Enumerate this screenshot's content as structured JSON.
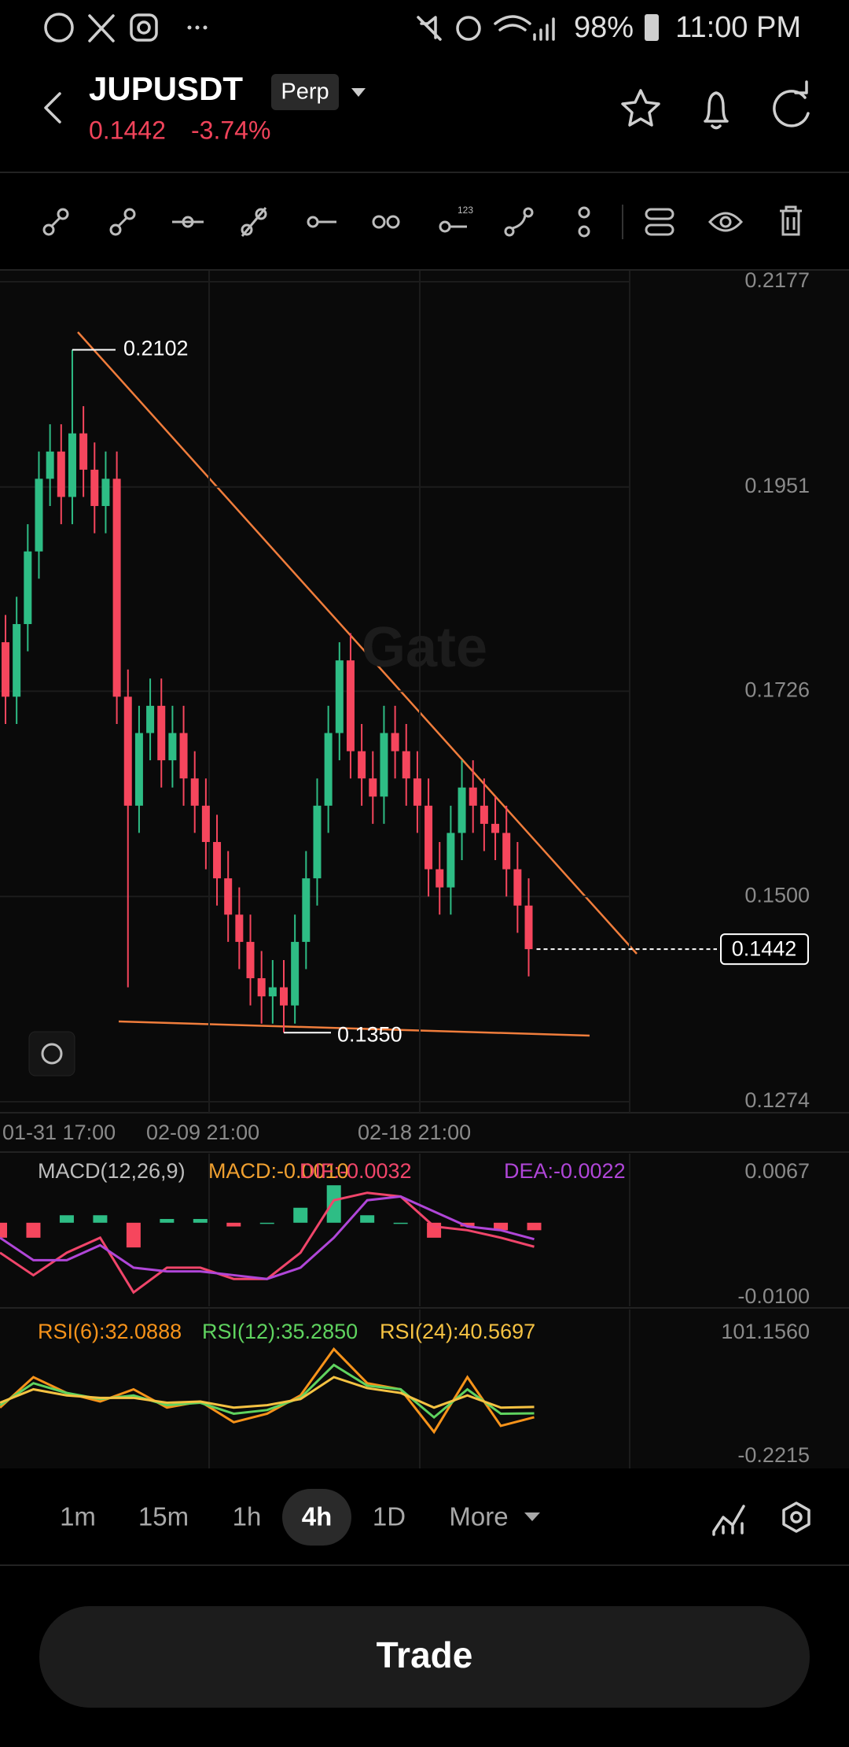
{
  "status_bar": {
    "battery": "98%",
    "time": "11:00 PM"
  },
  "header": {
    "symbol": "JUPUSDT",
    "contract": "Perp",
    "price": "0.1442",
    "change": "-3.74%"
  },
  "chart_data": [
    {
      "type": "candlestick",
      "watermark": "Gate",
      "up_color": "#2ebd85",
      "down_color": "#f6465d",
      "open": [
        0.178,
        0.172,
        0.18,
        0.188,
        0.196,
        0.199,
        0.194,
        0.201,
        0.197,
        0.193,
        0.196,
        0.172,
        0.16,
        0.168,
        0.171,
        0.165,
        0.168,
        0.163,
        0.16,
        0.156,
        0.152,
        0.148,
        0.145,
        0.141,
        0.139,
        0.14,
        0.138,
        0.145,
        0.152,
        0.16,
        0.168,
        0.176,
        0.166,
        0.163,
        0.161,
        0.168,
        0.166,
        0.163,
        0.16,
        0.153,
        0.151,
        0.157,
        0.162,
        0.16,
        0.158,
        0.157,
        0.153,
        0.149
      ],
      "high": [
        0.181,
        0.183,
        0.191,
        0.199,
        0.202,
        0.202,
        0.2102,
        0.204,
        0.2,
        0.199,
        0.199,
        0.175,
        0.171,
        0.174,
        0.174,
        0.171,
        0.171,
        0.166,
        0.163,
        0.159,
        0.155,
        0.151,
        0.148,
        0.144,
        0.143,
        0.143,
        0.148,
        0.155,
        0.163,
        0.171,
        0.178,
        0.179,
        0.169,
        0.166,
        0.171,
        0.171,
        0.169,
        0.166,
        0.163,
        0.156,
        0.16,
        0.165,
        0.165,
        0.163,
        0.161,
        0.16,
        0.156,
        0.152
      ],
      "low": [
        0.169,
        0.169,
        0.177,
        0.185,
        0.193,
        0.191,
        0.191,
        0.194,
        0.19,
        0.19,
        0.169,
        0.14,
        0.157,
        0.165,
        0.162,
        0.162,
        0.16,
        0.157,
        0.153,
        0.149,
        0.145,
        0.142,
        0.138,
        0.136,
        0.136,
        0.135,
        0.136,
        0.142,
        0.149,
        0.157,
        0.165,
        0.163,
        0.16,
        0.158,
        0.158,
        0.163,
        0.16,
        0.157,
        0.15,
        0.148,
        0.148,
        0.154,
        0.157,
        0.155,
        0.154,
        0.15,
        0.146,
        0.1412
      ],
      "close": [
        0.172,
        0.18,
        0.188,
        0.196,
        0.199,
        0.194,
        0.201,
        0.197,
        0.193,
        0.196,
        0.172,
        0.16,
        0.168,
        0.171,
        0.165,
        0.168,
        0.163,
        0.16,
        0.156,
        0.152,
        0.148,
        0.145,
        0.141,
        0.139,
        0.14,
        0.138,
        0.145,
        0.152,
        0.16,
        0.168,
        0.176,
        0.166,
        0.163,
        0.161,
        0.168,
        0.166,
        0.163,
        0.16,
        0.153,
        0.151,
        0.157,
        0.162,
        0.16,
        0.158,
        0.157,
        0.153,
        0.149,
        0.1442
      ],
      "ylim": [
        0.1274,
        0.2177
      ],
      "yticks": [
        0.1274,
        {
          "value": 0.15,
          "label": "0.1500"
        },
        0.1726,
        0.1951,
        0.2177
      ],
      "x_labels": [
        "01-31 17:00",
        "02-09 21:00",
        "02-18 21:00"
      ],
      "high_marker": 0.2102,
      "low_marker": {
        "value": 0.135,
        "label": "0.1350"
      },
      "last_price": 0.1442,
      "grid": true
    },
    {
      "type": "macd",
      "title": "MACD(12,26,9)",
      "up_color": "#2ebd85",
      "down_color": "#f6465d",
      "series": [
        {
          "name": "MACD:-0.0010",
          "color": "#f0a030",
          "values": [
            -0.002,
            -0.002,
            0.001,
            0.001,
            -0.0033,
            0.0005,
            0.0005,
            -0.0005,
            0,
            0.002,
            0.005,
            0.001,
            0,
            -0.002,
            -0.0005,
            -0.001,
            -0.001
          ]
        },
        {
          "name": "DIF:-0.0032",
          "color": "#f0456a",
          "values": [
            -0.004,
            -0.007,
            -0.004,
            -0.002,
            -0.0093,
            -0.006,
            -0.006,
            -0.0075,
            -0.0075,
            -0.004,
            0.003,
            0.004,
            0.0035,
            -0.0005,
            -0.001,
            -0.002,
            -0.0032
          ]
        },
        {
          "name": "DEA:-0.0022",
          "color": "#b046d8",
          "values": [
            -0.002,
            -0.005,
            -0.005,
            -0.003,
            -0.006,
            -0.0065,
            -0.0065,
            -0.007,
            -0.0075,
            -0.006,
            -0.002,
            0.003,
            0.0035,
            0.0015,
            -0.0005,
            -0.001,
            -0.0022
          ]
        }
      ],
      "ylim": [
        -0.01,
        0.0067
      ],
      "yticks": [
        {
          "value": -0.01,
          "label": "-0.0100"
        },
        0.0067
      ]
    },
    {
      "type": "line",
      "series": [
        {
          "name": "RSI(6):32.0888",
          "color": "#f7931a",
          "values": [
            40,
            65,
            52,
            45,
            55,
            40,
            45,
            28,
            35,
            50,
            88,
            60,
            55,
            20,
            65,
            25,
            32.0888
          ]
        },
        {
          "name": "RSI(12):35.2850",
          "color": "#5fd35f",
          "values": [
            42,
            60,
            52,
            47,
            50,
            42,
            44,
            35,
            38,
            48,
            75,
            58,
            55,
            32,
            55,
            35,
            35.285
          ]
        },
        {
          "name": "RSI(24):40.5697",
          "color": "#f5c242",
          "values": [
            44,
            55,
            50,
            48,
            48,
            44,
            45,
            40,
            42,
            47,
            65,
            56,
            52,
            40,
            50,
            40,
            40.5697
          ]
        }
      ],
      "ylim": [
        -0.2215,
        101.156
      ],
      "yticks": [
        -0.2215,
        {
          "value": 101.156,
          "label": "101.1560"
        }
      ]
    }
  ],
  "timeframes": [
    "1m",
    "15m",
    "1h",
    "4h",
    "1D",
    "More"
  ],
  "active_timeframe": "4h",
  "trade_button": "Trade"
}
